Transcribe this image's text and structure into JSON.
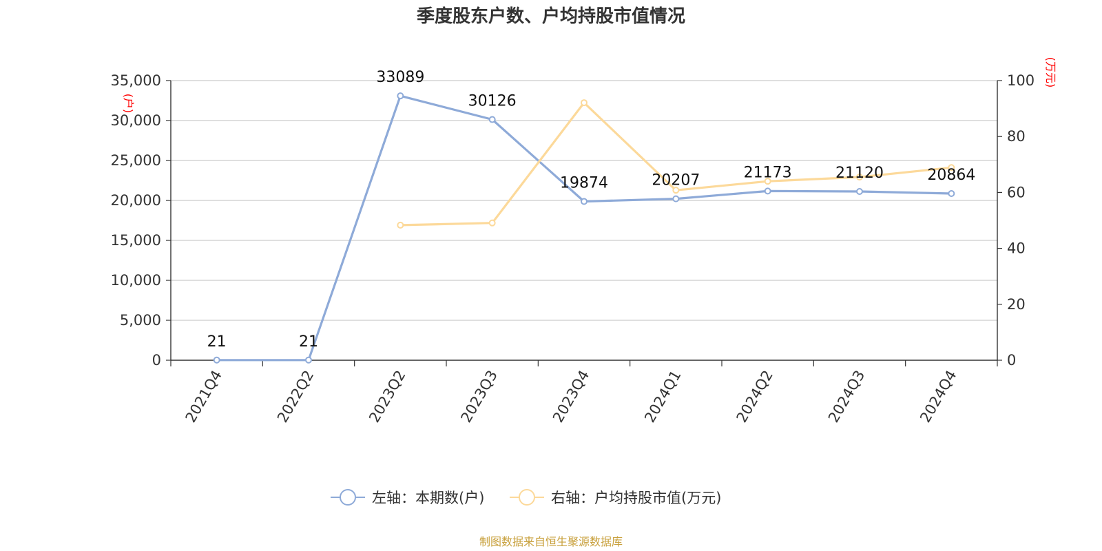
{
  "chart_data": {
    "type": "line",
    "title": "季度股东户数、户均持股市值情况",
    "categories": [
      "2021Q4",
      "2022Q2",
      "2023Q2",
      "2023Q3",
      "2023Q4",
      "2024Q1",
      "2024Q2",
      "2024Q3",
      "2024Q4"
    ],
    "left_axis": {
      "unit": "(户)",
      "range": [
        0,
        35000
      ],
      "ticks": [
        0,
        5000,
        10000,
        15000,
        20000,
        25000,
        30000,
        35000
      ],
      "tick_labels": [
        "0",
        "5,000",
        "10,000",
        "15,000",
        "20,000",
        "25,000",
        "30,000",
        "35,000"
      ]
    },
    "right_axis": {
      "unit": "(万元)",
      "range": [
        0,
        100
      ],
      "ticks": [
        0,
        20,
        40,
        60,
        80,
        100
      ],
      "tick_labels": [
        "0",
        "20",
        "40",
        "60",
        "80",
        "100"
      ]
    },
    "series": [
      {
        "name": "左轴：本期数(户)",
        "axis": "left",
        "color": "#8eaad8",
        "values": [
          21,
          21,
          33089,
          30126,
          19874,
          20207,
          21173,
          21120,
          20864
        ],
        "labels": [
          "21",
          "21",
          "33089",
          "30126",
          "19874",
          "20207",
          "21173",
          "21120",
          "20864"
        ]
      },
      {
        "name": "右轴：户均持股市值(万元)",
        "axis": "right",
        "color": "#fcd99a",
        "values": [
          null,
          null,
          48.3,
          49.1,
          92.1,
          60.8,
          64.0,
          65.5,
          68.9
        ]
      }
    ],
    "grid": true,
    "legend_position": "bottom-center"
  },
  "footer": {
    "source": "制图数据来自恒生聚源数据库"
  }
}
